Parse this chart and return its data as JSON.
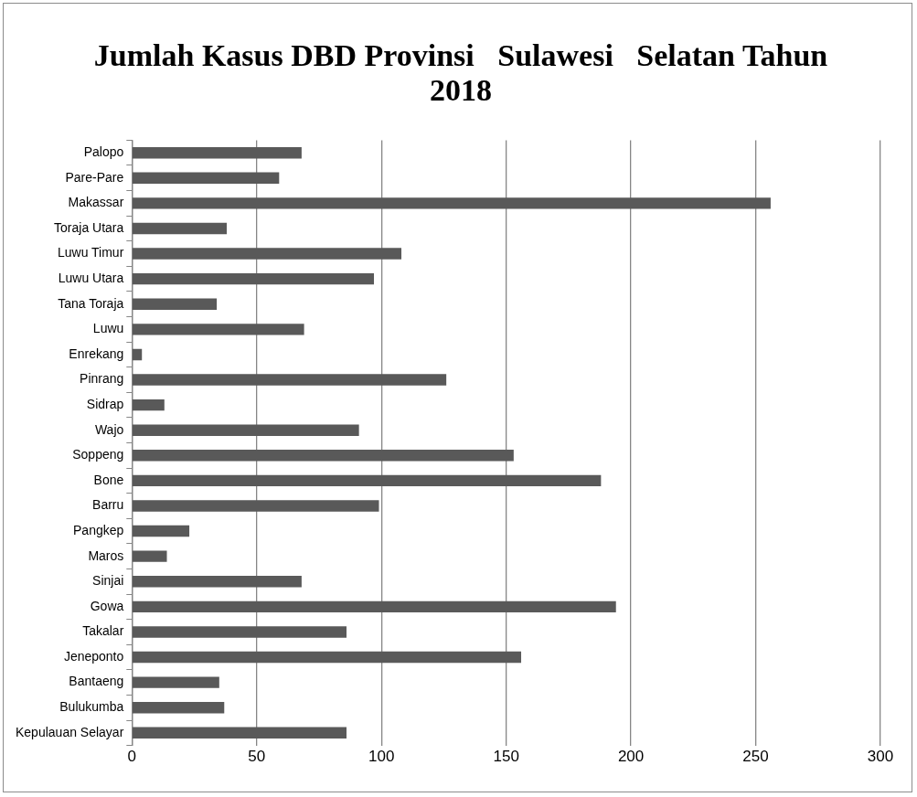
{
  "chart_data": {
    "type": "bar",
    "orientation": "horizontal",
    "title": "Jumlah Kasus DBD Provinsi   Sulawesi   Selatan Tahun 2018",
    "categories": [
      "Palopo",
      "Pare-Pare",
      "Makassar",
      "Toraja Utara",
      "Luwu Timur",
      "Luwu Utara",
      "Tana Toraja",
      "Luwu",
      "Enrekang",
      "Pinrang",
      "Sidrap",
      "Wajo",
      "Soppeng",
      "Bone",
      "Barru",
      "Pangkep",
      "Maros",
      "Sinjai",
      "Gowa",
      "Takalar",
      "Jeneponto",
      "Bantaeng",
      "Bulukumba",
      "Kepulauan Selayar"
    ],
    "values": [
      68,
      59,
      256,
      38,
      108,
      97,
      34,
      69,
      4,
      126,
      13,
      91,
      153,
      188,
      99,
      23,
      14,
      68,
      194,
      86,
      156,
      35,
      37,
      86
    ],
    "color": "#595959",
    "xlim": [
      0,
      300
    ],
    "xticks": [
      0,
      50,
      100,
      150,
      200,
      250,
      300
    ],
    "grid": "x",
    "legend": false
  }
}
